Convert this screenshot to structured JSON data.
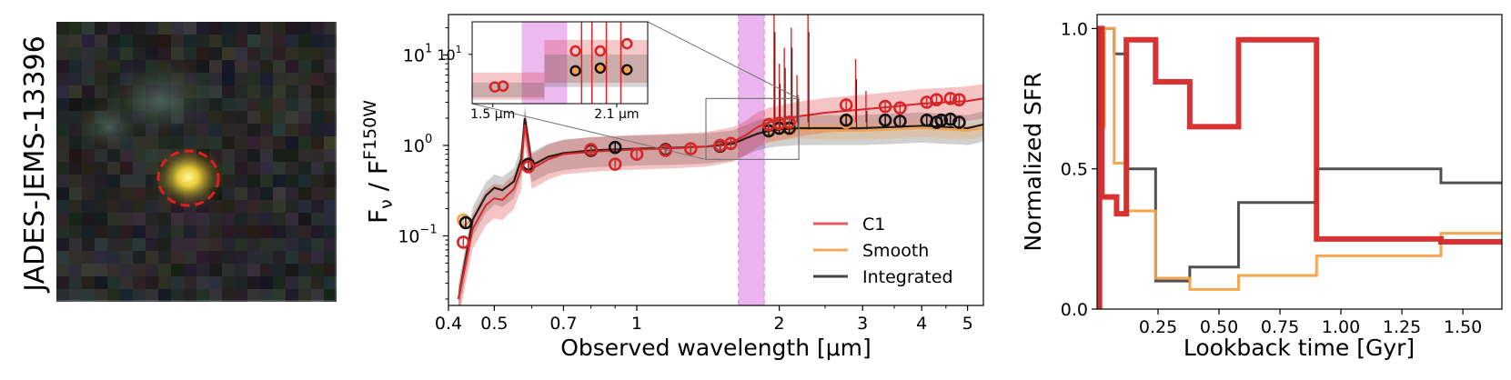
{
  "figure_label": "JADES-JEMS-13396",
  "colors": {
    "c1": "#d62728",
    "smooth": "#f5a04a",
    "integrated": "#333333",
    "band": "#e8a7ee"
  },
  "chart_data": [
    {
      "type": "image",
      "description_name": "galaxy-cutout",
      "aperture": "dashed-ellipse"
    },
    {
      "type": "line",
      "title": "",
      "xlabel": "Observed wavelength [μm]",
      "ylabel_main": "F",
      "ylabel_sub": "ν",
      "ylabel_sep": " / F",
      "ylabel_sup": "F150W",
      "xscale": "log",
      "yscale": "log",
      "xlim": [
        0.4,
        5.4
      ],
      "ylim": [
        0.017,
        28
      ],
      "xticks": [
        {
          "v": 0.4,
          "label": "0.4"
        },
        {
          "v": 0.5,
          "label": "0.5"
        },
        {
          "v": 0.7,
          "label": "0.7"
        },
        {
          "v": 1,
          "label": "1"
        },
        {
          "v": 2,
          "label": "2"
        },
        {
          "v": 3,
          "label": "3"
        },
        {
          "v": 4,
          "label": "4"
        },
        {
          "v": 5,
          "label": "5"
        }
      ],
      "yticks": [
        {
          "v": 0.1,
          "base": "10",
          "exp": "−1"
        },
        {
          "v": 1,
          "base": "10",
          "exp": "0"
        },
        {
          "v": 10,
          "base": "10",
          "exp": "1"
        }
      ],
      "shaded_band": {
        "x0": 1.64,
        "x1": 1.86
      },
      "zoom_box": {
        "x0": 1.4,
        "x1": 2.2,
        "y0": 0.7,
        "y1": 3.3
      },
      "legend": [
        {
          "label": "C1",
          "key": "c1"
        },
        {
          "label": "Smooth",
          "key": "smooth"
        },
        {
          "label": "Integrated",
          "key": "integrated"
        }
      ],
      "legend_position": "lower-right",
      "series": [
        {
          "name": "Integrated",
          "key": "integrated",
          "x": [
            0.42,
            0.45,
            0.48,
            0.5,
            0.52,
            0.55,
            0.57,
            0.58,
            0.6,
            0.65,
            0.7,
            0.8,
            0.9,
            1.0,
            1.2,
            1.4,
            1.6,
            1.7,
            1.8,
            1.9,
            2.0,
            2.2,
            2.5,
            3.0,
            3.5,
            4.0,
            4.5,
            5.0,
            5.4
          ],
          "y": [
            0.02,
            0.15,
            0.28,
            0.34,
            0.32,
            0.4,
            0.7,
            2.0,
            0.6,
            0.75,
            0.82,
            0.88,
            0.9,
            0.92,
            0.94,
            0.97,
            1.05,
            1.2,
            1.35,
            1.45,
            1.5,
            1.55,
            1.55,
            1.55,
            1.6,
            1.65,
            1.6,
            1.55,
            1.7
          ]
        },
        {
          "name": "C1",
          "key": "c1",
          "x": [
            0.42,
            0.45,
            0.48,
            0.5,
            0.52,
            0.55,
            0.57,
            0.58,
            0.6,
            0.65,
            0.7,
            0.8,
            0.9,
            1.0,
            1.2,
            1.4,
            1.6,
            1.7,
            1.8,
            1.9,
            2.0,
            2.2,
            2.5,
            3.0,
            3.5,
            4.0,
            4.5,
            5.0,
            5.4
          ],
          "y": [
            0.02,
            0.12,
            0.22,
            0.26,
            0.25,
            0.33,
            0.55,
            1.7,
            0.55,
            0.7,
            0.8,
            0.85,
            0.88,
            0.9,
            0.93,
            0.97,
            1.1,
            1.3,
            1.6,
            1.8,
            1.9,
            2.1,
            2.3,
            2.5,
            2.7,
            2.9,
            3.0,
            3.1,
            3.3
          ]
        },
        {
          "name": "Smooth",
          "key": "smooth",
          "x": [
            1.9,
            2.2,
            2.5,
            3.0,
            3.5,
            4.0,
            4.5,
            5.0,
            5.4
          ],
          "y": [
            1.35,
            1.5,
            1.45,
            1.45,
            1.5,
            1.55,
            1.5,
            1.45,
            1.55
          ]
        }
      ],
      "photometry": {
        "integrated": [
          [
            0.435,
            0.14
          ],
          [
            0.59,
            0.62
          ],
          [
            0.8,
            0.88
          ],
          [
            0.9,
            0.95
          ],
          [
            1.15,
            0.9
          ],
          [
            1.5,
            0.98
          ],
          [
            1.9,
            1.45
          ],
          [
            2.0,
            1.55
          ],
          [
            2.1,
            1.55
          ],
          [
            2.77,
            1.9
          ],
          [
            3.35,
            1.9
          ],
          [
            3.6,
            1.85
          ],
          [
            4.1,
            1.9
          ],
          [
            4.3,
            1.8
          ],
          [
            4.4,
            1.9
          ],
          [
            4.6,
            1.95
          ],
          [
            4.8,
            1.8
          ]
        ],
        "c1": [
          [
            0.43,
            0.085
          ],
          [
            0.59,
            0.58
          ],
          [
            0.8,
            0.9
          ],
          [
            0.9,
            0.62
          ],
          [
            1.0,
            0.8
          ],
          [
            1.15,
            0.88
          ],
          [
            1.3,
            0.92
          ],
          [
            1.5,
            1.0
          ],
          [
            1.58,
            1.05
          ],
          [
            1.9,
            1.7
          ],
          [
            2.0,
            1.75
          ],
          [
            2.1,
            1.8
          ],
          [
            2.77,
            2.8
          ],
          [
            3.35,
            2.7
          ],
          [
            3.6,
            2.6
          ],
          [
            4.1,
            3.0
          ],
          [
            4.3,
            3.2
          ],
          [
            4.6,
            3.3
          ],
          [
            4.8,
            3.2
          ]
        ],
        "smooth": [
          [
            0.43,
            0.15
          ],
          [
            1.9,
            1.45
          ],
          [
            2.1,
            1.5
          ],
          [
            2.77,
            1.8
          ],
          [
            4.1,
            1.9
          ],
          [
            4.8,
            1.75
          ]
        ]
      },
      "inset": {
        "xlim": [
          1.4,
          2.25
        ],
        "ylim": [
          2.5,
          25
        ],
        "xticks": [
          {
            "v": 1.5,
            "label": "1.5 μm"
          },
          {
            "v": 2.1,
            "label": "2.1 μm"
          }
        ],
        "yticks": [
          {
            "v": 10,
            "base": "10",
            "exp": "1"
          }
        ],
        "c1_points": [
          [
            1.51,
            4.0
          ],
          [
            1.55,
            4.1
          ],
          [
            1.9,
            11.0
          ],
          [
            2.02,
            11.0
          ],
          [
            2.15,
            13.5
          ]
        ],
        "integrated_points": [
          [
            1.9,
            6.3
          ],
          [
            2.02,
            6.8
          ],
          [
            2.15,
            6.5
          ]
        ]
      }
    },
    {
      "type": "line",
      "subtype": "step",
      "xlabel": "Lookback time [Gyr]",
      "ylabel": "Normalized SFR",
      "xlim": [
        0,
        1.66
      ],
      "ylim": [
        0,
        1.05
      ],
      "xticks": [
        {
          "v": 0.25,
          "label": "0.25"
        },
        {
          "v": 0.5,
          "label": "0.50"
        },
        {
          "v": 0.75,
          "label": "0.75"
        },
        {
          "v": 1.0,
          "label": "1.00"
        },
        {
          "v": 1.25,
          "label": "1.25"
        },
        {
          "v": 1.5,
          "label": "1.50"
        }
      ],
      "yticks": [
        {
          "v": 0,
          "label": "0.0"
        },
        {
          "v": 0.5,
          "label": "0.5"
        },
        {
          "v": 1.0,
          "label": "1.0"
        }
      ],
      "series": [
        {
          "name": "Integrated",
          "key": "integrated",
          "width": 3,
          "edges": [
            0.01,
            0.03,
            0.07,
            0.12,
            0.15,
            0.24,
            0.38,
            0.58,
            0.9,
            1.41,
            1.66
          ],
          "values": [
            1.0,
            1.0,
            0.91,
            0.5,
            0.5,
            0.1,
            0.15,
            0.38,
            0.5,
            0.45
          ]
        },
        {
          "name": "Smooth",
          "key": "smooth",
          "width": 3,
          "edges": [
            0.01,
            0.03,
            0.07,
            0.12,
            0.15,
            0.24,
            0.38,
            0.58,
            0.9,
            1.41,
            1.66
          ],
          "values": [
            0.65,
            1.0,
            0.52,
            0.35,
            0.35,
            0.11,
            0.07,
            0.12,
            0.19,
            0.27
          ]
        },
        {
          "name": "C1",
          "key": "c1",
          "width": 6,
          "edges": [
            0.01,
            0.02,
            0.08,
            0.12,
            0.24,
            0.38,
            0.58,
            0.9,
            1.41,
            1.66
          ],
          "values": [
            1.0,
            0.4,
            0.34,
            0.96,
            0.81,
            0.65,
            0.96,
            0.25,
            0.24
          ]
        }
      ]
    }
  ]
}
